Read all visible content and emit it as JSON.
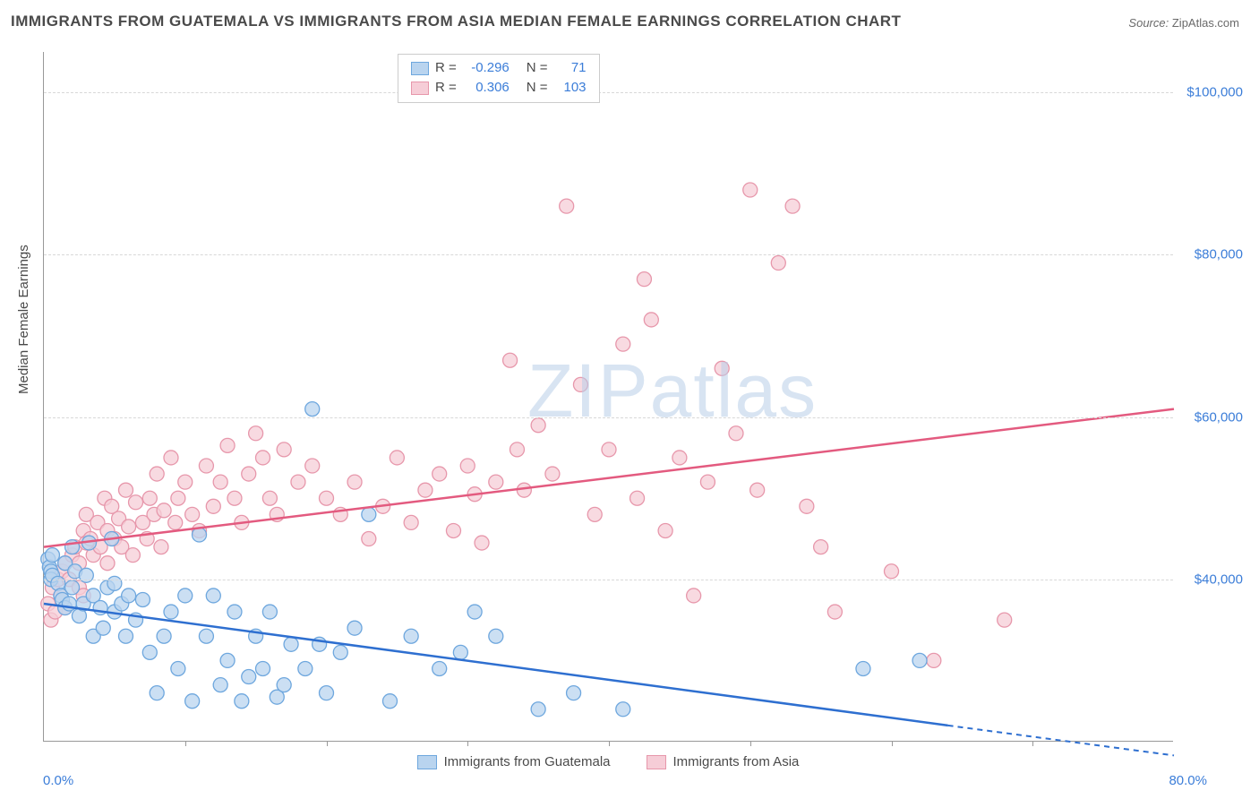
{
  "title": "IMMIGRANTS FROM GUATEMALA VS IMMIGRANTS FROM ASIA MEDIAN FEMALE EARNINGS CORRELATION CHART",
  "source_label": "Source:",
  "source_value": "ZipAtlas.com",
  "y_axis_label": "Median Female Earnings",
  "watermark": "ZIPatlas",
  "chart": {
    "type": "scatter-with-regression",
    "background_color": "#ffffff",
    "grid_color": "#d8d8d8",
    "text_color": "#4a4a4a",
    "value_color": "#3b7dd8",
    "xlim": [
      0,
      80
    ],
    "ylim": [
      20000,
      105000
    ],
    "x_ticks": [
      0,
      80
    ],
    "x_tick_labels": [
      "0.0%",
      "80.0%"
    ],
    "x_minor_ticks": [
      10,
      20,
      30,
      40,
      50,
      60,
      70
    ],
    "y_ticks": [
      40000,
      60000,
      80000,
      100000
    ],
    "y_tick_labels": [
      "$40,000",
      "$60,000",
      "$80,000",
      "$100,000"
    ],
    "series": [
      {
        "name": "Immigrants from Guatemala",
        "fill": "#b9d4ef",
        "stroke": "#6ea7de",
        "line_color": "#2e6fd0",
        "R": "-0.296",
        "N": "71",
        "marker_r": 8,
        "regression": {
          "x1": 0,
          "y1": 37000,
          "x2": 64,
          "y2": 22000
        },
        "regression_dash": {
          "x1": 64,
          "y1": 22000,
          "x2": 80,
          "y2": 18300
        },
        "points": [
          [
            0.3,
            42500
          ],
          [
            0.4,
            41500
          ],
          [
            0.5,
            41000
          ],
          [
            0.5,
            40000
          ],
          [
            0.6,
            40500
          ],
          [
            0.6,
            43000
          ],
          [
            1.0,
            39500
          ],
          [
            1.2,
            38000
          ],
          [
            1.3,
            37500
          ],
          [
            1.5,
            36500
          ],
          [
            1.5,
            42000
          ],
          [
            1.8,
            37000
          ],
          [
            2.0,
            39000
          ],
          [
            2.0,
            44000
          ],
          [
            2.2,
            41000
          ],
          [
            2.5,
            35500
          ],
          [
            2.8,
            37000
          ],
          [
            3.0,
            40500
          ],
          [
            3.2,
            44500
          ],
          [
            3.5,
            38000
          ],
          [
            3.5,
            33000
          ],
          [
            4.0,
            36500
          ],
          [
            4.2,
            34000
          ],
          [
            4.5,
            39000
          ],
          [
            4.8,
            45000
          ],
          [
            5.0,
            36000
          ],
          [
            5.0,
            39500
          ],
          [
            5.5,
            37000
          ],
          [
            5.8,
            33000
          ],
          [
            6.0,
            38000
          ],
          [
            6.5,
            35000
          ],
          [
            7.0,
            37500
          ],
          [
            7.5,
            31000
          ],
          [
            8.0,
            26000
          ],
          [
            8.5,
            33000
          ],
          [
            9.0,
            36000
          ],
          [
            9.5,
            29000
          ],
          [
            10.0,
            38000
          ],
          [
            10.5,
            25000
          ],
          [
            11.0,
            45500
          ],
          [
            11.5,
            33000
          ],
          [
            12.0,
            38000
          ],
          [
            12.5,
            27000
          ],
          [
            13.0,
            30000
          ],
          [
            13.5,
            36000
          ],
          [
            14.0,
            25000
          ],
          [
            14.5,
            28000
          ],
          [
            15.0,
            33000
          ],
          [
            15.5,
            29000
          ],
          [
            16.0,
            36000
          ],
          [
            16.5,
            25500
          ],
          [
            17.0,
            27000
          ],
          [
            17.5,
            32000
          ],
          [
            18.5,
            29000
          ],
          [
            19.0,
            61000
          ],
          [
            19.5,
            32000
          ],
          [
            20.0,
            26000
          ],
          [
            21.0,
            31000
          ],
          [
            22.0,
            34000
          ],
          [
            23.0,
            48000
          ],
          [
            24.5,
            25000
          ],
          [
            26.0,
            33000
          ],
          [
            28.0,
            29000
          ],
          [
            29.5,
            31000
          ],
          [
            30.5,
            36000
          ],
          [
            32.0,
            33000
          ],
          [
            35.0,
            24000
          ],
          [
            37.5,
            26000
          ],
          [
            41.0,
            24000
          ],
          [
            58.0,
            29000
          ],
          [
            62.0,
            30000
          ]
        ]
      },
      {
        "name": "Immigrants from Asia",
        "fill": "#f6cdd7",
        "stroke": "#e797ab",
        "line_color": "#e35a7f",
        "R": "0.306",
        "N": "103",
        "marker_r": 8,
        "regression": {
          "x1": 0,
          "y1": 44000,
          "x2": 80,
          "y2": 61000
        },
        "points": [
          [
            0.3,
            37000
          ],
          [
            0.5,
            35000
          ],
          [
            0.6,
            39000
          ],
          [
            0.8,
            36000
          ],
          [
            1.0,
            40000
          ],
          [
            1.2,
            38000
          ],
          [
            1.3,
            41000
          ],
          [
            1.5,
            42000
          ],
          [
            1.5,
            36500
          ],
          [
            1.8,
            40000
          ],
          [
            2.0,
            43000
          ],
          [
            2.2,
            44000
          ],
          [
            2.5,
            42000
          ],
          [
            2.5,
            39000
          ],
          [
            2.8,
            46000
          ],
          [
            2.8,
            38000
          ],
          [
            3.0,
            44500
          ],
          [
            3.0,
            48000
          ],
          [
            3.3,
            45000
          ],
          [
            3.5,
            43000
          ],
          [
            3.8,
            47000
          ],
          [
            4.0,
            44000
          ],
          [
            4.3,
            50000
          ],
          [
            4.5,
            46000
          ],
          [
            4.5,
            42000
          ],
          [
            4.8,
            49000
          ],
          [
            5.0,
            45000
          ],
          [
            5.3,
            47500
          ],
          [
            5.5,
            44000
          ],
          [
            5.8,
            51000
          ],
          [
            6.0,
            46500
          ],
          [
            6.3,
            43000
          ],
          [
            6.5,
            49500
          ],
          [
            7.0,
            47000
          ],
          [
            7.3,
            45000
          ],
          [
            7.5,
            50000
          ],
          [
            7.8,
            48000
          ],
          [
            8.0,
            53000
          ],
          [
            8.3,
            44000
          ],
          [
            8.5,
            48500
          ],
          [
            9.0,
            55000
          ],
          [
            9.3,
            47000
          ],
          [
            9.5,
            50000
          ],
          [
            10.0,
            52000
          ],
          [
            10.5,
            48000
          ],
          [
            11.0,
            46000
          ],
          [
            11.5,
            54000
          ],
          [
            12.0,
            49000
          ],
          [
            12.5,
            52000
          ],
          [
            13.0,
            56500
          ],
          [
            13.5,
            50000
          ],
          [
            14.0,
            47000
          ],
          [
            14.5,
            53000
          ],
          [
            15.0,
            58000
          ],
          [
            15.5,
            55000
          ],
          [
            16.0,
            50000
          ],
          [
            16.5,
            48000
          ],
          [
            17.0,
            56000
          ],
          [
            18.0,
            52000
          ],
          [
            19.0,
            54000
          ],
          [
            20.0,
            50000
          ],
          [
            21.0,
            48000
          ],
          [
            22.0,
            52000
          ],
          [
            23.0,
            45000
          ],
          [
            24.0,
            49000
          ],
          [
            25.0,
            55000
          ],
          [
            26.0,
            47000
          ],
          [
            27.0,
            51000
          ],
          [
            28.0,
            53000
          ],
          [
            29.0,
            46000
          ],
          [
            30.0,
            54000
          ],
          [
            30.5,
            50500
          ],
          [
            31.0,
            44500
          ],
          [
            32.0,
            52000
          ],
          [
            33.0,
            67000
          ],
          [
            33.5,
            56000
          ],
          [
            34.0,
            51000
          ],
          [
            35.0,
            59000
          ],
          [
            36.0,
            53000
          ],
          [
            37.0,
            86000
          ],
          [
            38.0,
            64000
          ],
          [
            39.0,
            48000
          ],
          [
            40.0,
            56000
          ],
          [
            41.0,
            69000
          ],
          [
            42.0,
            50000
          ],
          [
            42.5,
            77000
          ],
          [
            43.0,
            72000
          ],
          [
            44.0,
            46000
          ],
          [
            45.0,
            55000
          ],
          [
            46.0,
            38000
          ],
          [
            47.0,
            52000
          ],
          [
            48.0,
            66000
          ],
          [
            49.0,
            58000
          ],
          [
            50.0,
            88000
          ],
          [
            50.5,
            51000
          ],
          [
            52.0,
            79000
          ],
          [
            53.0,
            86000
          ],
          [
            54.0,
            49000
          ],
          [
            55.0,
            44000
          ],
          [
            56.0,
            36000
          ],
          [
            60.0,
            41000
          ],
          [
            63.0,
            30000
          ],
          [
            68.0,
            35000
          ]
        ]
      }
    ]
  }
}
